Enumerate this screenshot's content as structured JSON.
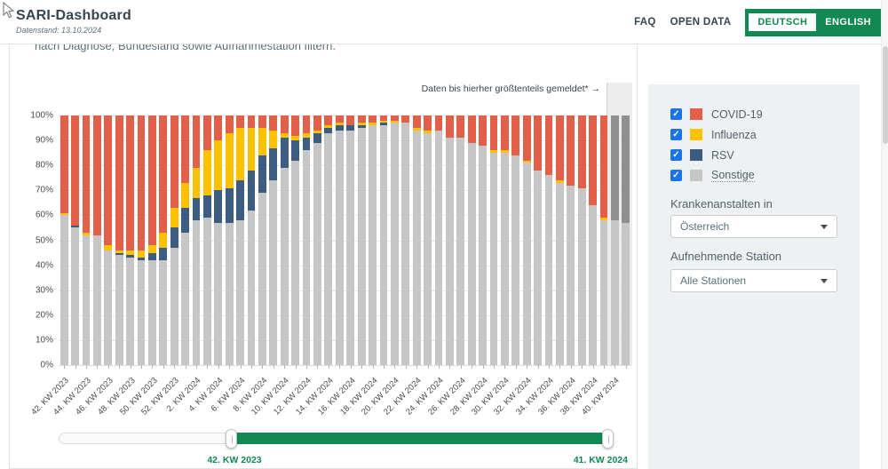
{
  "colors": {
    "accent_green": "#128853",
    "checkbox_blue": "#1a73e8",
    "covid": "#e2604a",
    "influenza": "#fcc200",
    "rsv": "#3d5c81",
    "sonstige": "#c6c6c6",
    "incomplete_gray": "#8f8f8f"
  },
  "header": {
    "title": "SARI-Dashboard",
    "subtitle": "Datenstand: 13.10.2024",
    "nav": [
      {
        "label": "FAQ"
      },
      {
        "label": "OPEN DATA"
      }
    ],
    "language_toggle": {
      "active": "DEUTSCH",
      "inactive": "ENGLISH"
    }
  },
  "intro_text": "nach Diagnose, Bundesland sowie Aufnahmestation filtern.",
  "filters": {
    "legend": [
      {
        "label": "COVID-19",
        "color": "#e2604a",
        "checked": true,
        "dotted": false
      },
      {
        "label": "Influenza",
        "color": "#fcc200",
        "checked": true,
        "dotted": false
      },
      {
        "label": "RSV",
        "color": "#3d5c81",
        "checked": true,
        "dotted": false
      },
      {
        "label": "Sonstige",
        "color": "#c6c6c6",
        "checked": true,
        "dotted": true
      }
    ],
    "hospital_label": "Krankenanstalten in",
    "hospital_value": "Österreich",
    "station_label": "Aufnehmende Station",
    "station_value": "Alle Stationen"
  },
  "slider": {
    "start_label": "42. KW 2023",
    "end_label": "41. KW 2024"
  },
  "chart_data": {
    "type": "bar",
    "stacked": true,
    "unit": "percent",
    "ylim": [
      0,
      100
    ],
    "yticks": [
      "0%",
      "10%",
      "20%",
      "30%",
      "40%",
      "50%",
      "60%",
      "70%",
      "80%",
      "90%",
      "100%"
    ],
    "annotation": "Daten bis hierher größtenteils gemeldet* →",
    "x_label_every": 2,
    "stack_order_bottom_to_top": [
      "Sonstige",
      "RSV",
      "Influenza",
      "COVID-19"
    ],
    "incomplete_from_index": 50,
    "incomplete_note": "bars in shaded band rendered gray (data not fully reported)",
    "categories": [
      "42. KW 2023",
      "43. KW 2023",
      "44. KW 2023",
      "45. KW 2023",
      "46. KW 2023",
      "47. KW 2023",
      "48. KW 2023",
      "49. KW 2023",
      "50. KW 2023",
      "51. KW 2023",
      "52. KW 2023",
      "1. KW 2024",
      "2. KW 2024",
      "3. KW 2024",
      "4. KW 2024",
      "5. KW 2024",
      "6. KW 2024",
      "7. KW 2024",
      "8. KW 2024",
      "9. KW 2024",
      "10. KW 2024",
      "11. KW 2024",
      "12. KW 2024",
      "13. KW 2024",
      "14. KW 2024",
      "15. KW 2024",
      "16. KW 2024",
      "17. KW 2024",
      "18. KW 2024",
      "19. KW 2024",
      "20. KW 2024",
      "21. KW 2024",
      "22. KW 2024",
      "23. KW 2024",
      "24. KW 2024",
      "25. KW 2024",
      "26. KW 2024",
      "27. KW 2024",
      "28. KW 2024",
      "29. KW 2024",
      "30. KW 2024",
      "31. KW 2024",
      "32. KW 2024",
      "33. KW 2024",
      "34. KW 2024",
      "35. KW 2024",
      "36. KW 2024",
      "37. KW 2024",
      "38. KW 2024",
      "39. KW 2024",
      "40. KW 2024",
      "41. KW 2024"
    ],
    "series": [
      {
        "name": "COVID-19",
        "color": "#e2604a",
        "values": [
          39,
          44,
          47,
          48,
          52,
          54,
          54,
          54,
          52,
          47,
          37,
          27,
          21,
          14,
          10,
          7,
          5,
          5,
          5,
          6,
          7,
          8,
          7,
          6,
          4,
          3,
          4,
          3,
          3,
          2,
          2,
          3,
          5,
          6,
          6,
          9,
          9,
          11,
          12,
          14,
          14,
          16,
          18,
          22,
          24,
          26,
          28,
          29,
          36,
          41,
          42,
          43
        ]
      },
      {
        "name": "Influenza",
        "color": "#fcc200",
        "values": [
          1,
          0,
          1,
          0,
          2,
          1,
          2,
          3,
          3,
          6,
          8,
          10,
          12,
          18,
          20,
          22,
          21,
          17,
          11,
          7,
          2,
          2,
          2,
          1,
          1,
          1,
          0,
          1,
          1,
          1,
          1,
          0,
          1,
          1,
          0,
          0,
          0,
          0,
          0,
          1,
          1,
          0,
          1,
          0,
          0,
          1,
          0,
          0,
          0,
          1,
          0,
          0
        ]
      },
      {
        "name": "RSV",
        "color": "#3d5c81",
        "values": [
          0,
          1,
          0,
          0,
          0,
          1,
          1,
          1,
          3,
          5,
          8,
          10,
          9,
          9,
          13,
          14,
          16,
          16,
          15,
          13,
          12,
          8,
          5,
          4,
          2,
          2,
          2,
          1,
          0,
          1,
          0,
          0,
          0,
          0,
          0,
          0,
          0,
          0,
          0,
          0,
          0,
          0,
          0,
          0,
          0,
          0,
          0,
          0,
          0,
          0,
          0,
          0
        ]
      },
      {
        "name": "Sonstige",
        "color": "#c6c6c6",
        "values": [
          60,
          55,
          52,
          52,
          46,
          44,
          43,
          42,
          42,
          42,
          47,
          53,
          58,
          59,
          57,
          57,
          58,
          62,
          69,
          74,
          79,
          82,
          86,
          89,
          93,
          94,
          94,
          95,
          96,
          96,
          97,
          97,
          94,
          93,
          94,
          91,
          91,
          89,
          88,
          85,
          85,
          84,
          81,
          78,
          76,
          73,
          72,
          71,
          64,
          58,
          58,
          57
        ]
      }
    ]
  }
}
